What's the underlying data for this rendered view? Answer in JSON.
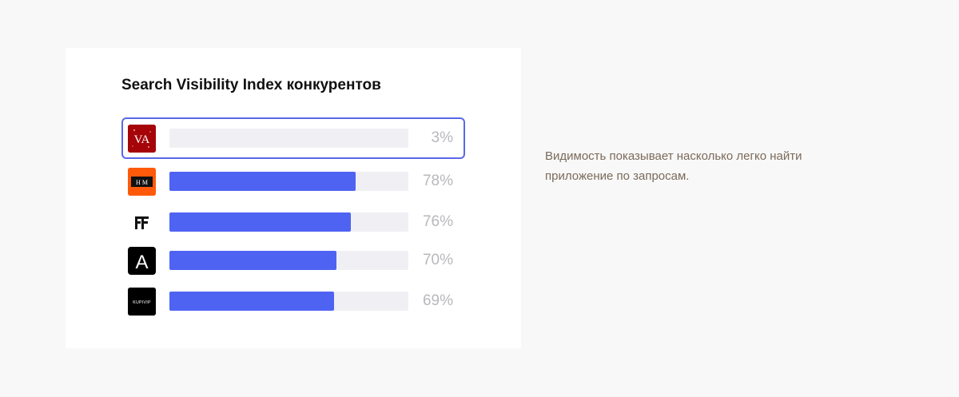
{
  "chart_data": {
    "type": "bar",
    "orientation": "horizontal",
    "title": "Search Visibility Index конкурентов",
    "xlim": [
      0,
      100
    ],
    "bar_color": "#4f63f3",
    "track_color": "#f0f0f4",
    "highlight_color": "#5a68e8",
    "rows": [
      {
        "logo": "va-logo-icon",
        "logo_text": "VA",
        "value": 3,
        "label": "3%",
        "highlighted": true
      },
      {
        "logo": "hm-logo-icon",
        "logo_text": "H M",
        "value": 78,
        "label": "78%",
        "highlighted": false
      },
      {
        "logo": "ff-logo-icon",
        "logo_text": "FF",
        "value": 76,
        "label": "76%",
        "highlighted": false
      },
      {
        "logo": "a-logo-icon",
        "logo_text": "A",
        "value": 70,
        "label": "70%",
        "highlighted": false
      },
      {
        "logo": "kupivip-logo-icon",
        "logo_text": "KUPIVIP",
        "value": 69,
        "label": "69%",
        "highlighted": false
      }
    ]
  },
  "note": "Видимость показывает насколько легко найти приложение по запросам."
}
